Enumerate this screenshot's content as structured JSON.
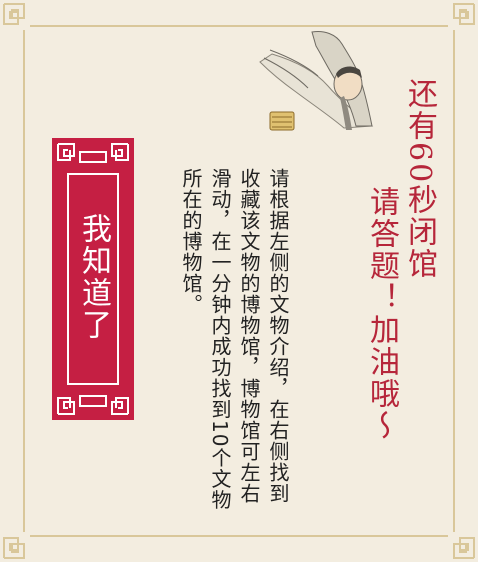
{
  "panel": {
    "countdown_text": "还有60秒闭馆",
    "prompt_text": "请答题！加油哦～",
    "instructions_text": "请根据左侧的文物介绍，在右侧找到收藏该文物的博物馆，博物馆可左右滑动，在一分钟内成功找到10个文物所在的博物馆。"
  },
  "button": {
    "label": "我知道了"
  },
  "colors": {
    "background": "#f3ede0",
    "frame": "#d9c79a",
    "accent_red": "#b6263a",
    "button_fill": "#c51f43",
    "text": "#222222"
  },
  "icons": [
    "scholar-figure-illustration",
    "corner-fretwork-ornament"
  ]
}
